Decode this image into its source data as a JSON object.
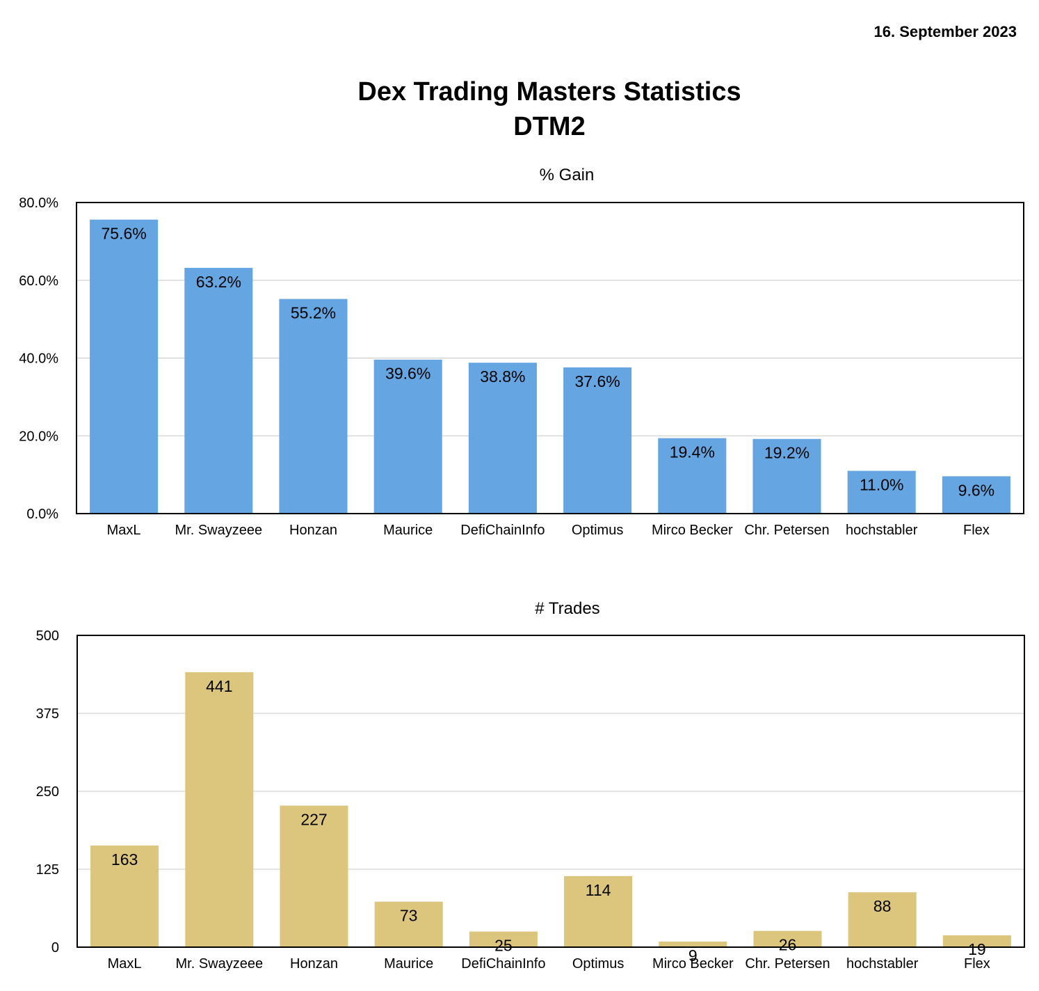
{
  "header": {
    "date": "16. September 2023",
    "title_line1": "Dex Trading Masters Statistics",
    "title_line2": "DTM2"
  },
  "colors": {
    "gain_bar": "#65a6e2",
    "trades_bar": "#dcc67e",
    "grid": "#c8c8c8",
    "frame": "#000000"
  },
  "chart_data": [
    {
      "type": "bar",
      "title": "% Gain",
      "categories": [
        "MaxL",
        "Mr. Swayzeee",
        "Honzan",
        "Maurice",
        "DefiChainInfo",
        "Optimus",
        "Mirco Becker",
        "Chr. Petersen",
        "hochstabler",
        "Flex"
      ],
      "values": [
        75.6,
        63.2,
        55.2,
        39.6,
        38.8,
        37.6,
        19.4,
        19.2,
        11.0,
        9.6
      ],
      "value_labels": [
        "75.6%",
        "63.2%",
        "55.2%",
        "39.6%",
        "38.8%",
        "37.6%",
        "19.4%",
        "19.2%",
        "11.0%",
        "9.6%"
      ],
      "yticks": [
        0,
        20,
        40,
        60,
        80
      ],
      "ytick_labels": [
        "0.0%",
        "20.0%",
        "40.0%",
        "60.0%",
        "80.0%"
      ],
      "ylim": [
        0,
        80
      ],
      "grid": true
    },
    {
      "type": "bar",
      "title": "# Trades",
      "categories": [
        "MaxL",
        "Mr. Swayzeee",
        "Honzan",
        "Maurice",
        "DefiChainInfo",
        "Optimus",
        "Mirco Becker",
        "Chr. Petersen",
        "hochstabler",
        "Flex"
      ],
      "values": [
        163,
        441,
        227,
        73,
        25,
        114,
        9,
        26,
        88,
        19
      ],
      "value_labels": [
        "163",
        "441",
        "227",
        "73",
        "25",
        "114",
        "9",
        "26",
        "88",
        "19"
      ],
      "yticks": [
        0,
        125,
        250,
        375,
        500
      ],
      "ytick_labels": [
        "0",
        "125",
        "250",
        "375",
        "500"
      ],
      "ylim": [
        0,
        500
      ],
      "grid": true
    }
  ]
}
